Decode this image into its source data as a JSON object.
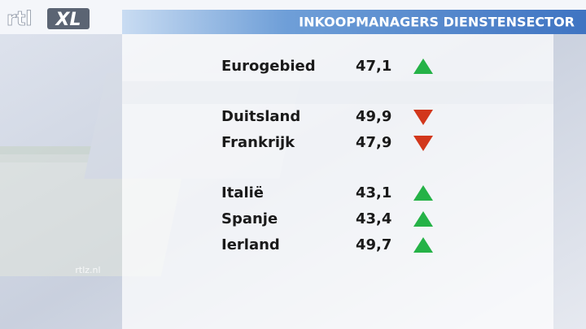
{
  "header": {
    "logo": {
      "brand": "rtl",
      "suffix": "XL"
    },
    "title": "INKOOPMANAGERS DIENSTENSECTOR"
  },
  "table": {
    "groups": [
      [
        {
          "name": "Eurogebied",
          "value": "47,1",
          "trend": "up"
        }
      ],
      [
        {
          "name": "Duitsland",
          "value": "49,9",
          "trend": "down"
        },
        {
          "name": "Frankrijk",
          "value": "47,9",
          "trend": "down"
        }
      ],
      [
        {
          "name": "Italië",
          "value": "43,1",
          "trend": "up"
        },
        {
          "name": "Spanje",
          "value": "43,4",
          "trend": "up"
        },
        {
          "name": "Ierland",
          "value": "49,7",
          "trend": "up"
        }
      ]
    ]
  },
  "watermark": "rtlz.nl"
}
